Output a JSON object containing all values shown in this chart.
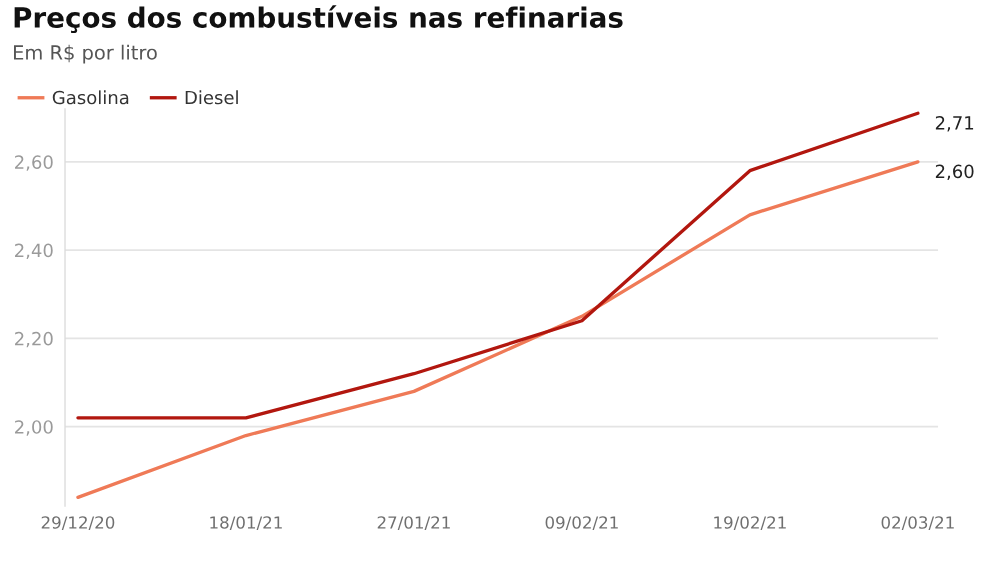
{
  "chart_data": {
    "type": "line",
    "title": "Preços dos combustíveis nas refinarias",
    "subtitle": "Em R$ por litro",
    "categories": [
      "29/12/20",
      "18/01/21",
      "27/01/21",
      "09/02/21",
      "19/02/21",
      "02/03/21"
    ],
    "series": [
      {
        "name": "Gasolina",
        "color": "#ef7a57",
        "values": [
          1.84,
          1.98,
          2.08,
          2.25,
          2.48,
          2.6
        ],
        "value_labels": [
          null,
          null,
          null,
          null,
          null,
          "2,60"
        ]
      },
      {
        "name": "Diesel",
        "color": "#b2170f",
        "values": [
          2.02,
          2.02,
          2.12,
          2.24,
          2.58,
          2.71
        ],
        "value_labels": [
          null,
          null,
          null,
          null,
          null,
          "2,71"
        ]
      }
    ],
    "ylim": [
      1.82,
      2.72
    ],
    "yticks": [
      {
        "value": 2.0,
        "label": "2,00"
      },
      {
        "value": 2.2,
        "label": "2,20"
      },
      {
        "value": 2.4,
        "label": "2,40"
      },
      {
        "value": 2.6,
        "label": "2,60"
      }
    ],
    "grid": "y",
    "legend": "top left",
    "marker": "none",
    "line_style": "solid"
  }
}
